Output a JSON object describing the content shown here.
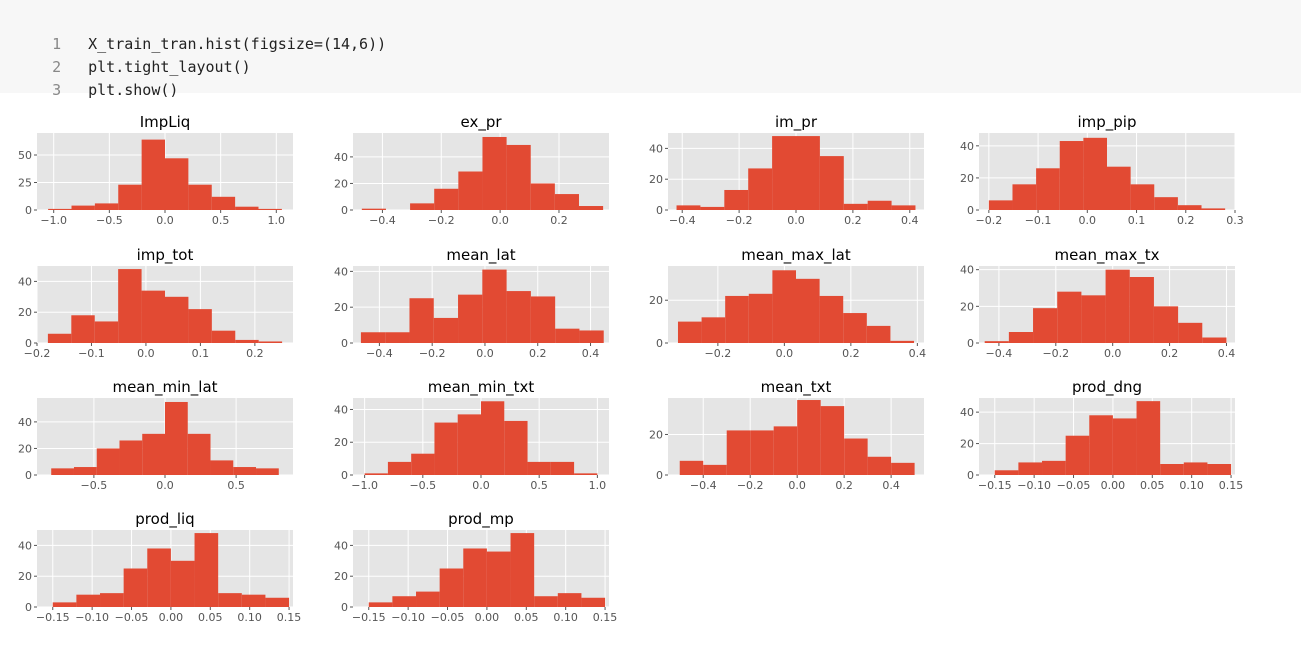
{
  "code": {
    "lines": [
      {
        "num": "1",
        "text": "X_train_tran.hist(figsize=(14,6))"
      },
      {
        "num": "2",
        "text": "plt.tight_layout()"
      },
      {
        "num": "3",
        "text": "plt.show()"
      }
    ]
  },
  "colors": {
    "bar": "#E24A33",
    "panel": "#E5E5E5",
    "grid": "#FFFFFF",
    "tick_text": "#555555",
    "title_text": "#000000"
  },
  "chart_data": [
    {
      "type": "bar",
      "title": "ImpLiq",
      "xlim": [
        -1.15,
        1.15
      ],
      "bin_edges": [
        -1.05,
        -0.84,
        -0.63,
        -0.42,
        -0.21,
        0.0,
        0.21,
        0.42,
        0.63,
        0.84,
        1.05
      ],
      "values": [
        1,
        4,
        6,
        23,
        64,
        47,
        23,
        12,
        3,
        1
      ],
      "xticks": [
        -1.0,
        -0.5,
        0.0,
        0.5,
        1.0
      ],
      "xtick_labels": [
        "−1.0",
        "−0.5",
        "0.0",
        "0.5",
        "1.0"
      ],
      "ylim": [
        0,
        70
      ],
      "yticks": [
        0,
        25,
        50
      ],
      "ytick_labels": [
        "0",
        "25",
        "50"
      ]
    },
    {
      "type": "bar",
      "title": "ex_pr",
      "xlim": [
        -0.5,
        0.37
      ],
      "bin_edges": [
        -0.47,
        -0.388,
        -0.306,
        -0.224,
        -0.142,
        -0.06,
        0.022,
        0.104,
        0.186,
        0.268,
        0.35
      ],
      "values": [
        1,
        0,
        5,
        16,
        29,
        55,
        49,
        20,
        12,
        3
      ],
      "xticks": [
        -0.4,
        -0.2,
        0.0,
        0.2
      ],
      "xtick_labels": [
        "−0.4",
        "−0.2",
        "0.0",
        "0.2"
      ],
      "ylim": [
        0,
        58
      ],
      "yticks": [
        0,
        20,
        40
      ],
      "ytick_labels": [
        "0",
        "20",
        "40"
      ]
    },
    {
      "type": "bar",
      "title": "im_pr",
      "xlim": [
        -0.45,
        0.45
      ],
      "bin_edges": [
        -0.42,
        -0.336,
        -0.252,
        -0.168,
        -0.084,
        0.0,
        0.084,
        0.168,
        0.252,
        0.336,
        0.42
      ],
      "values": [
        3,
        2,
        13,
        27,
        48,
        48,
        35,
        4,
        6,
        3
      ],
      "xticks": [
        -0.4,
        -0.2,
        0.0,
        0.2,
        0.4
      ],
      "xtick_labels": [
        "−0.4",
        "−0.2",
        "0.0",
        "0.2",
        "0.4"
      ],
      "ylim": [
        0,
        50
      ],
      "yticks": [
        0,
        20,
        40
      ],
      "ytick_labels": [
        "0",
        "20",
        "40"
      ]
    },
    {
      "type": "bar",
      "title": "imp_pip",
      "xlim": [
        -0.22,
        0.3
      ],
      "bin_edges": [
        -0.2,
        -0.152,
        -0.104,
        -0.056,
        -0.008,
        0.04,
        0.088,
        0.136,
        0.184,
        0.232,
        0.28
      ],
      "values": [
        6,
        16,
        26,
        43,
        45,
        27,
        16,
        8,
        3,
        1
      ],
      "xticks": [
        -0.2,
        -0.1,
        0.0,
        0.1,
        0.2,
        0.3
      ],
      "xtick_labels": [
        "−0.2",
        "−0.1",
        "0.0",
        "0.1",
        "0.2",
        "0.3"
      ],
      "ylim": [
        0,
        48
      ],
      "yticks": [
        0,
        20,
        40
      ],
      "ytick_labels": [
        "0",
        "20",
        "40"
      ]
    },
    {
      "type": "bar",
      "title": "imp_tot",
      "xlim": [
        -0.2,
        0.27
      ],
      "bin_edges": [
        -0.18,
        -0.137,
        -0.094,
        -0.051,
        -0.008,
        0.035,
        0.078,
        0.121,
        0.164,
        0.207,
        0.25
      ],
      "values": [
        6,
        18,
        14,
        48,
        34,
        30,
        22,
        8,
        2,
        1
      ],
      "xticks": [
        -0.2,
        -0.1,
        0.0,
        0.1,
        0.2
      ],
      "xtick_labels": [
        "−0.2",
        "−0.1",
        "0.0",
        "0.1",
        "0.2"
      ],
      "ylim": [
        0,
        50
      ],
      "yticks": [
        0,
        20,
        40
      ],
      "ytick_labels": [
        "0",
        "20",
        "40"
      ]
    },
    {
      "type": "bar",
      "title": "mean_lat",
      "xlim": [
        -0.5,
        0.47
      ],
      "bin_edges": [
        -0.47,
        -0.378,
        -0.286,
        -0.194,
        -0.102,
        -0.01,
        0.082,
        0.174,
        0.266,
        0.358,
        0.45
      ],
      "values": [
        6,
        6,
        25,
        14,
        27,
        41,
        29,
        26,
        8,
        7
      ],
      "xticks": [
        -0.4,
        -0.2,
        0.0,
        0.2,
        0.4
      ],
      "xtick_labels": [
        "−0.4",
        "−0.2",
        "0.0",
        "0.2",
        "0.4"
      ],
      "ylim": [
        0,
        43
      ],
      "yticks": [
        0,
        20,
        40
      ],
      "ytick_labels": [
        "0",
        "20",
        "40"
      ]
    },
    {
      "type": "bar",
      "title": "mean_max_lat",
      "xlim": [
        -0.35,
        0.42
      ],
      "bin_edges": [
        -0.32,
        -0.249,
        -0.178,
        -0.107,
        -0.036,
        0.035,
        0.106,
        0.177,
        0.248,
        0.319,
        0.39
      ],
      "values": [
        10,
        12,
        22,
        23,
        34,
        30,
        22,
        14,
        8,
        1
      ],
      "xticks": [
        -0.2,
        0.0,
        0.2,
        0.4
      ],
      "xtick_labels": [
        "−0.2",
        "0.0",
        "0.2",
        "0.4"
      ],
      "ylim": [
        0,
        36
      ],
      "yticks": [
        0,
        20
      ],
      "ytick_labels": [
        "0",
        "20"
      ]
    },
    {
      "type": "bar",
      "title": "mean_max_tx",
      "xlim": [
        -0.47,
        0.43
      ],
      "bin_edges": [
        -0.45,
        -0.365,
        -0.28,
        -0.195,
        -0.11,
        -0.025,
        0.06,
        0.145,
        0.23,
        0.315,
        0.4
      ],
      "values": [
        1,
        6,
        19,
        28,
        26,
        40,
        36,
        20,
        11,
        3
      ],
      "xticks": [
        -0.4,
        -0.2,
        0.0,
        0.2,
        0.4
      ],
      "xtick_labels": [
        "−0.4",
        "−0.2",
        "0.0",
        "0.2",
        "0.4"
      ],
      "ylim": [
        0,
        42
      ],
      "yticks": [
        0,
        20,
        40
      ],
      "ytick_labels": [
        "0",
        "20",
        "40"
      ]
    },
    {
      "type": "bar",
      "title": "mean_min_lat",
      "xlim": [
        -0.9,
        0.9
      ],
      "bin_edges": [
        -0.8,
        -0.64,
        -0.48,
        -0.32,
        -0.16,
        0.0,
        0.16,
        0.32,
        0.48,
        0.64,
        0.8
      ],
      "values": [
        5,
        6,
        20,
        26,
        31,
        55,
        31,
        11,
        6,
        5
      ],
      "xticks": [
        -0.5,
        0.0,
        0.5
      ],
      "xtick_labels": [
        "−0.5",
        "0.0",
        "0.5"
      ],
      "ylim": [
        0,
        58
      ],
      "yticks": [
        0,
        20,
        40
      ],
      "ytick_labels": [
        "0",
        "20",
        "40"
      ]
    },
    {
      "type": "bar",
      "title": "mean_min_txt",
      "xlim": [
        -1.1,
        1.1
      ],
      "bin_edges": [
        -1.0,
        -0.8,
        -0.6,
        -0.4,
        -0.2,
        0.0,
        0.2,
        0.4,
        0.6,
        0.8,
        1.0
      ],
      "values": [
        1,
        8,
        13,
        32,
        37,
        45,
        33,
        8,
        8,
        1
      ],
      "xticks": [
        -1.0,
        -0.5,
        0.0,
        0.5,
        1.0
      ],
      "xtick_labels": [
        "−1.0",
        "−0.5",
        "0.0",
        "0.5",
        "1.0"
      ],
      "ylim": [
        0,
        47
      ],
      "yticks": [
        0,
        20,
        40
      ],
      "ytick_labels": [
        "0",
        "20",
        "40"
      ]
    },
    {
      "type": "bar",
      "title": "mean_txt",
      "xlim": [
        -0.55,
        0.54
      ],
      "bin_edges": [
        -0.5,
        -0.4,
        -0.3,
        -0.2,
        -0.1,
        0.0,
        0.1,
        0.2,
        0.3,
        0.4,
        0.5
      ],
      "values": [
        7,
        5,
        22,
        22,
        24,
        37,
        34,
        18,
        9,
        6
      ],
      "xticks": [
        -0.4,
        -0.2,
        0.0,
        0.2,
        0.4
      ],
      "xtick_labels": [
        "−0.4",
        "−0.2",
        "0.0",
        "0.2",
        "0.4"
      ],
      "ylim": [
        0,
        38
      ],
      "yticks": [
        0,
        20
      ],
      "ytick_labels": [
        "0",
        "20"
      ]
    },
    {
      "type": "bar",
      "title": "prod_dng",
      "xlim": [
        -0.17,
        0.155
      ],
      "bin_edges": [
        -0.15,
        -0.12,
        -0.09,
        -0.06,
        -0.03,
        0.0,
        0.03,
        0.06,
        0.09,
        0.12,
        0.15
      ],
      "values": [
        3,
        8,
        9,
        25,
        38,
        36,
        47,
        7,
        8,
        7
      ],
      "xticks": [
        -0.15,
        -0.1,
        -0.05,
        0.0,
        0.05,
        0.1,
        0.15
      ],
      "xtick_labels": [
        "−0.15",
        "−0.10",
        "−0.05",
        "0.00",
        "0.05",
        "0.10",
        "0.15"
      ],
      "ylim": [
        0,
        49
      ],
      "yticks": [
        0,
        20,
        40
      ],
      "ytick_labels": [
        "0",
        "20",
        "40"
      ]
    },
    {
      "type": "bar",
      "title": "prod_liq",
      "xlim": [
        -0.17,
        0.155
      ],
      "bin_edges": [
        -0.15,
        -0.12,
        -0.09,
        -0.06,
        -0.03,
        0.0,
        0.03,
        0.06,
        0.09,
        0.12,
        0.15
      ],
      "values": [
        3,
        8,
        9,
        25,
        38,
        30,
        48,
        9,
        8,
        6
      ],
      "xticks": [
        -0.15,
        -0.1,
        -0.05,
        0.0,
        0.05,
        0.1,
        0.15
      ],
      "xtick_labels": [
        "−0.15",
        "−0.10",
        "−0.05",
        "0.00",
        "0.05",
        "0.10",
        "0.15"
      ],
      "ylim": [
        0,
        50
      ],
      "yticks": [
        0,
        20,
        40
      ],
      "ytick_labels": [
        "0",
        "20",
        "40"
      ]
    },
    {
      "type": "bar",
      "title": "prod_mp",
      "xlim": [
        -0.17,
        0.155
      ],
      "bin_edges": [
        -0.15,
        -0.12,
        -0.09,
        -0.06,
        -0.03,
        0.0,
        0.03,
        0.06,
        0.09,
        0.12,
        0.15
      ],
      "values": [
        3,
        7,
        10,
        25,
        38,
        36,
        48,
        7,
        9,
        6
      ],
      "xticks": [
        -0.15,
        -0.1,
        -0.05,
        0.0,
        0.05,
        0.1,
        0.15
      ],
      "xtick_labels": [
        "−0.15",
        "−0.10",
        "−0.05",
        "0.00",
        "0.05",
        "0.10",
        "0.15"
      ],
      "ylim": [
        0,
        50
      ],
      "yticks": [
        0,
        20,
        40
      ],
      "ytick_labels": [
        "0",
        "20",
        "40"
      ]
    }
  ]
}
